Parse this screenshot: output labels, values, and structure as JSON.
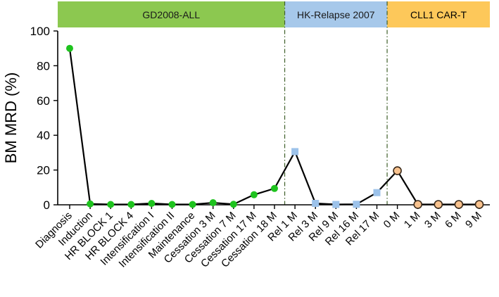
{
  "chart_data": {
    "type": "line",
    "title": "",
    "xlabel": "",
    "ylabel": "BM MRD (%)",
    "ylim": [
      0,
      100
    ],
    "yticks": [
      "0",
      "20",
      "40",
      "60",
      "80",
      "100"
    ],
    "grid": false,
    "categories": [
      "Diagnosis",
      "Induction",
      "HR BLOCK 1",
      "HR BLOCK 4",
      "Intensification I",
      "Intensification II",
      "Maintenance",
      "Cessation 3 M",
      "Cessation 7 M",
      "Cessation 17 M",
      "Cessation 18 M",
      "Rel 1 M",
      "Rel 3 M",
      "Rel 9 M",
      "Rel 16 M",
      "Rel 17 M",
      "0 M",
      "1 M",
      "3 M",
      "6 M",
      "9 M"
    ],
    "values": [
      90,
      0.5,
      0.2,
      0.2,
      0.8,
      0.2,
      0.2,
      1.2,
      0.3,
      5.8,
      9.4,
      30.6,
      0.8,
      0.2,
      0.3,
      7.0,
      19.6,
      0.2,
      0.2,
      0.2,
      0.2
    ],
    "marker_groups": [
      {
        "from": 0,
        "to": 10,
        "shape": "circle",
        "color": "#1ec31e"
      },
      {
        "from": 11,
        "to": 15,
        "shape": "square",
        "color": "#9cc2ea"
      },
      {
        "from": 16,
        "to": 20,
        "shape": "circle",
        "color": "#f8c28e"
      }
    ],
    "phases": [
      {
        "label": "GD2008-ALL",
        "from": 0,
        "to": 10,
        "color": "#8cc850"
      },
      {
        "label": "HK-Relapse 2007",
        "from": 11,
        "to": 15,
        "color": "#a6c8ea"
      },
      {
        "label": "CLL1 CAR-T",
        "from": 16,
        "to": 20,
        "color": "#fdc85a"
      }
    ],
    "line_color": "#000000",
    "divider_color": "#3f5f2a"
  }
}
